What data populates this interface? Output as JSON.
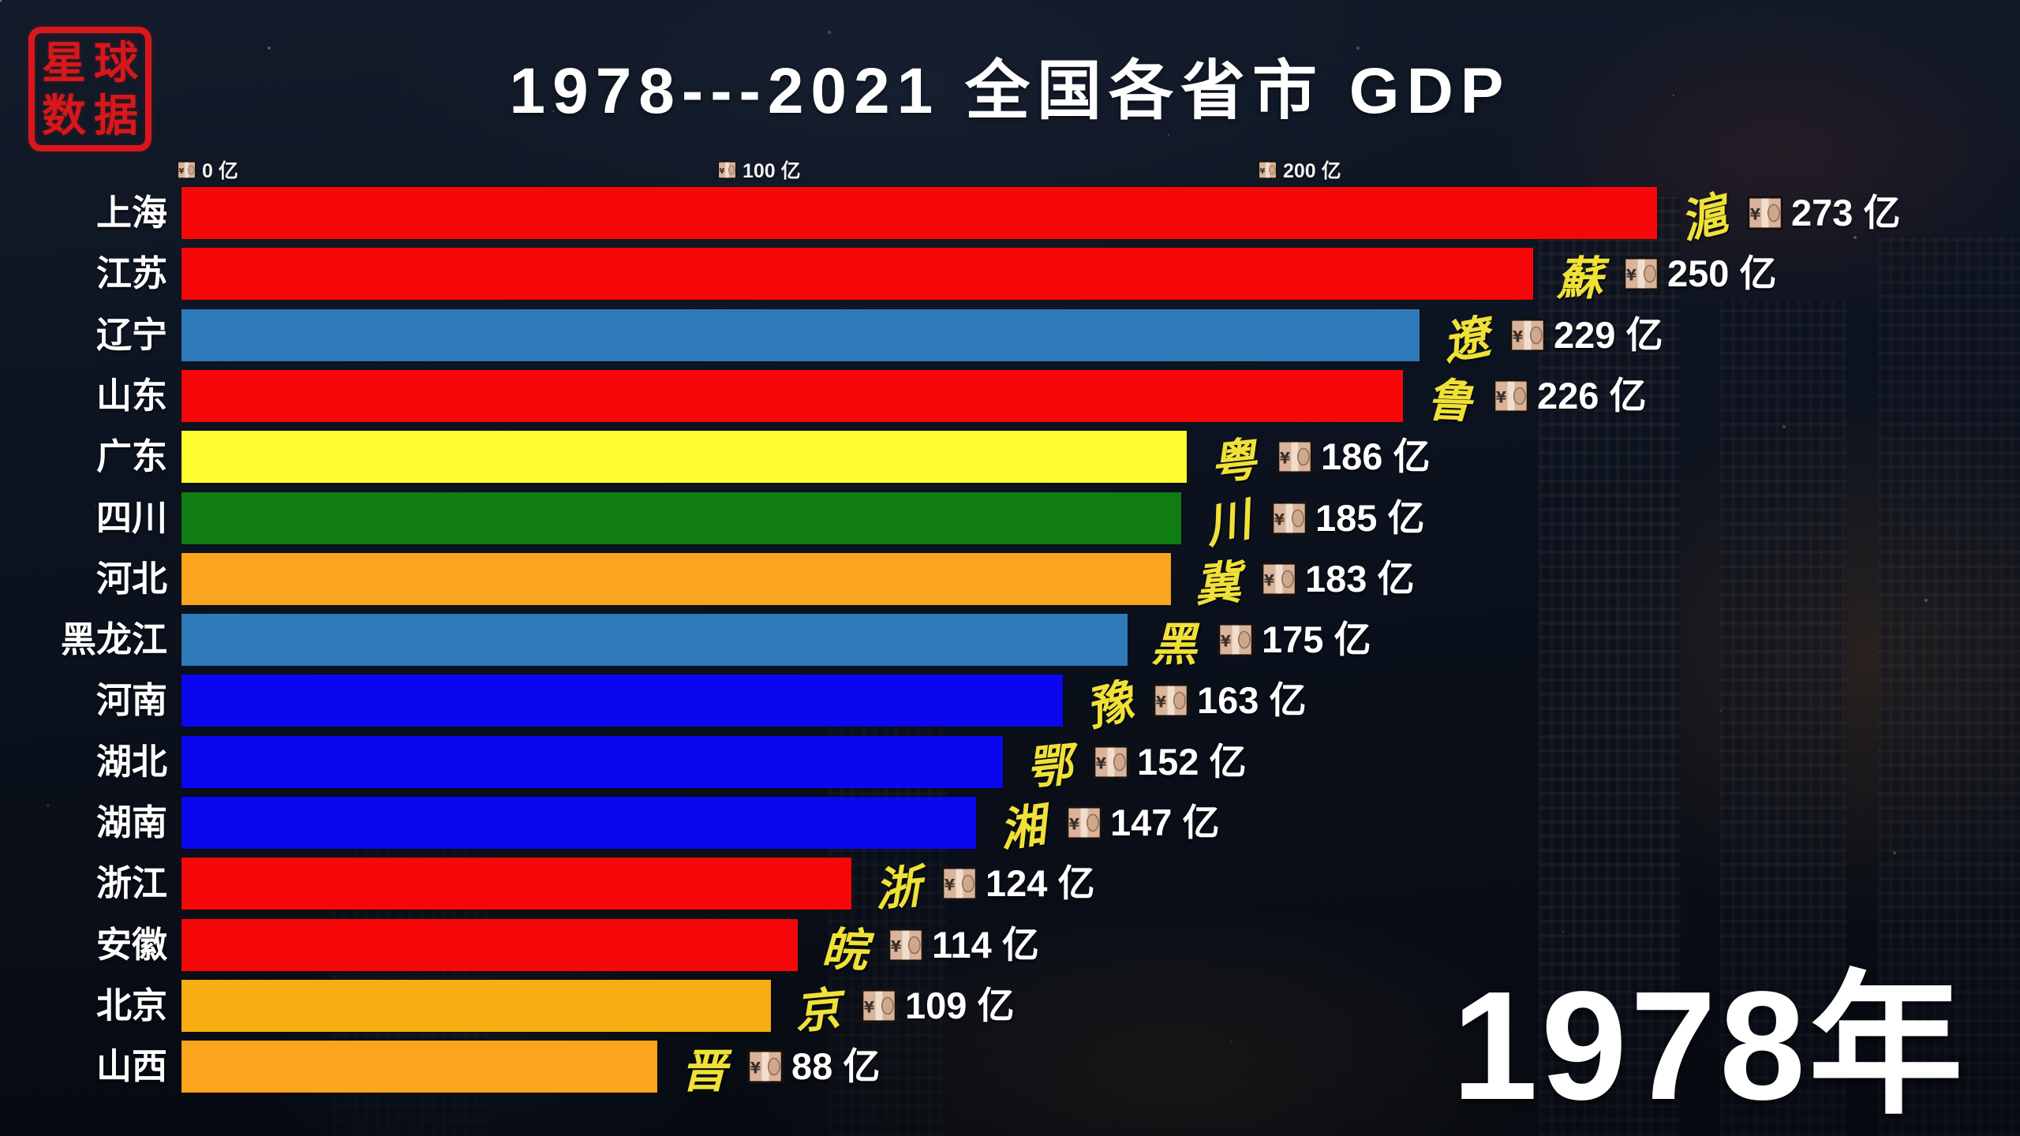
{
  "logo": {
    "name": "星球数据",
    "chars": [
      "星",
      "球",
      "数",
      "据"
    ],
    "seal_color": "#d6181c"
  },
  "header": {
    "title": "1978---2021 全国各省市 GDP"
  },
  "axis": {
    "unit": "亿",
    "ticks": [
      {
        "value": 0,
        "label": "0 亿"
      },
      {
        "value": 100,
        "label": "100 亿"
      },
      {
        "value": 200,
        "label": "200 亿"
      }
    ]
  },
  "year_badge": {
    "label": "1978年"
  },
  "icons": {
    "banknote": "yen-banknote-icon"
  },
  "palette": {
    "red": "#f70709",
    "steel_blue": "#2e79b8",
    "yellow": "#fdfd30",
    "green": "#0f7d11",
    "orange": "#fba41d",
    "amber": "#f8ad10",
    "blue": "#0b06f0",
    "calligraphy_yellow": "#f0e138",
    "text_white": "#ffffff"
  },
  "chart_data": {
    "type": "bar",
    "orientation": "horizontal",
    "title": "1978---2021 全国各省市 GDP",
    "year": "1978年",
    "unit": "亿",
    "xlim": [
      0,
      280
    ],
    "grid": false,
    "legend": "none",
    "categories": [
      "上海",
      "江苏",
      "辽宁",
      "山东",
      "广东",
      "四川",
      "河北",
      "黑龙江",
      "河南",
      "湖北",
      "湖南",
      "浙江",
      "安徽",
      "北京",
      "山西"
    ],
    "values": [
      273,
      250,
      229,
      226,
      186,
      185,
      183,
      175,
      163,
      152,
      147,
      124,
      114,
      109,
      88
    ],
    "bars": [
      {
        "province": "上海",
        "abbr": "滬",
        "value": 273,
        "value_label": "273 亿",
        "color": "#f70709"
      },
      {
        "province": "江苏",
        "abbr": "蘇",
        "value": 250,
        "value_label": "250 亿",
        "color": "#f70709"
      },
      {
        "province": "辽宁",
        "abbr": "遼",
        "value": 229,
        "value_label": "229 亿",
        "color": "#2e79b8"
      },
      {
        "province": "山东",
        "abbr": "鲁",
        "value": 226,
        "value_label": "226 亿",
        "color": "#f70709"
      },
      {
        "province": "广东",
        "abbr": "粤",
        "value": 186,
        "value_label": "186 亿",
        "color": "#fdfd30"
      },
      {
        "province": "四川",
        "abbr": "川",
        "value": 185,
        "value_label": "185 亿",
        "color": "#0f7d11"
      },
      {
        "province": "河北",
        "abbr": "冀",
        "value": 183,
        "value_label": "183 亿",
        "color": "#fba41d"
      },
      {
        "province": "黑龙江",
        "abbr": "黑",
        "value": 175,
        "value_label": "175 亿",
        "color": "#2e79b8"
      },
      {
        "province": "河南",
        "abbr": "豫",
        "value": 163,
        "value_label": "163 亿",
        "color": "#0b06f0"
      },
      {
        "province": "湖北",
        "abbr": "鄂",
        "value": 152,
        "value_label": "152 亿",
        "color": "#0b06f0"
      },
      {
        "province": "湖南",
        "abbr": "湘",
        "value": 147,
        "value_label": "147 亿",
        "color": "#0b06f0"
      },
      {
        "province": "浙江",
        "abbr": "浙",
        "value": 124,
        "value_label": "124 亿",
        "color": "#f70709"
      },
      {
        "province": "安徽",
        "abbr": "皖",
        "value": 114,
        "value_label": "114 亿",
        "color": "#f70709"
      },
      {
        "province": "北京",
        "abbr": "京",
        "value": 109,
        "value_label": "109 亿",
        "color": "#f8ad10"
      },
      {
        "province": "山西",
        "abbr": "晋",
        "value": 88,
        "value_label": "88 亿",
        "color": "#fba41d"
      }
    ]
  }
}
